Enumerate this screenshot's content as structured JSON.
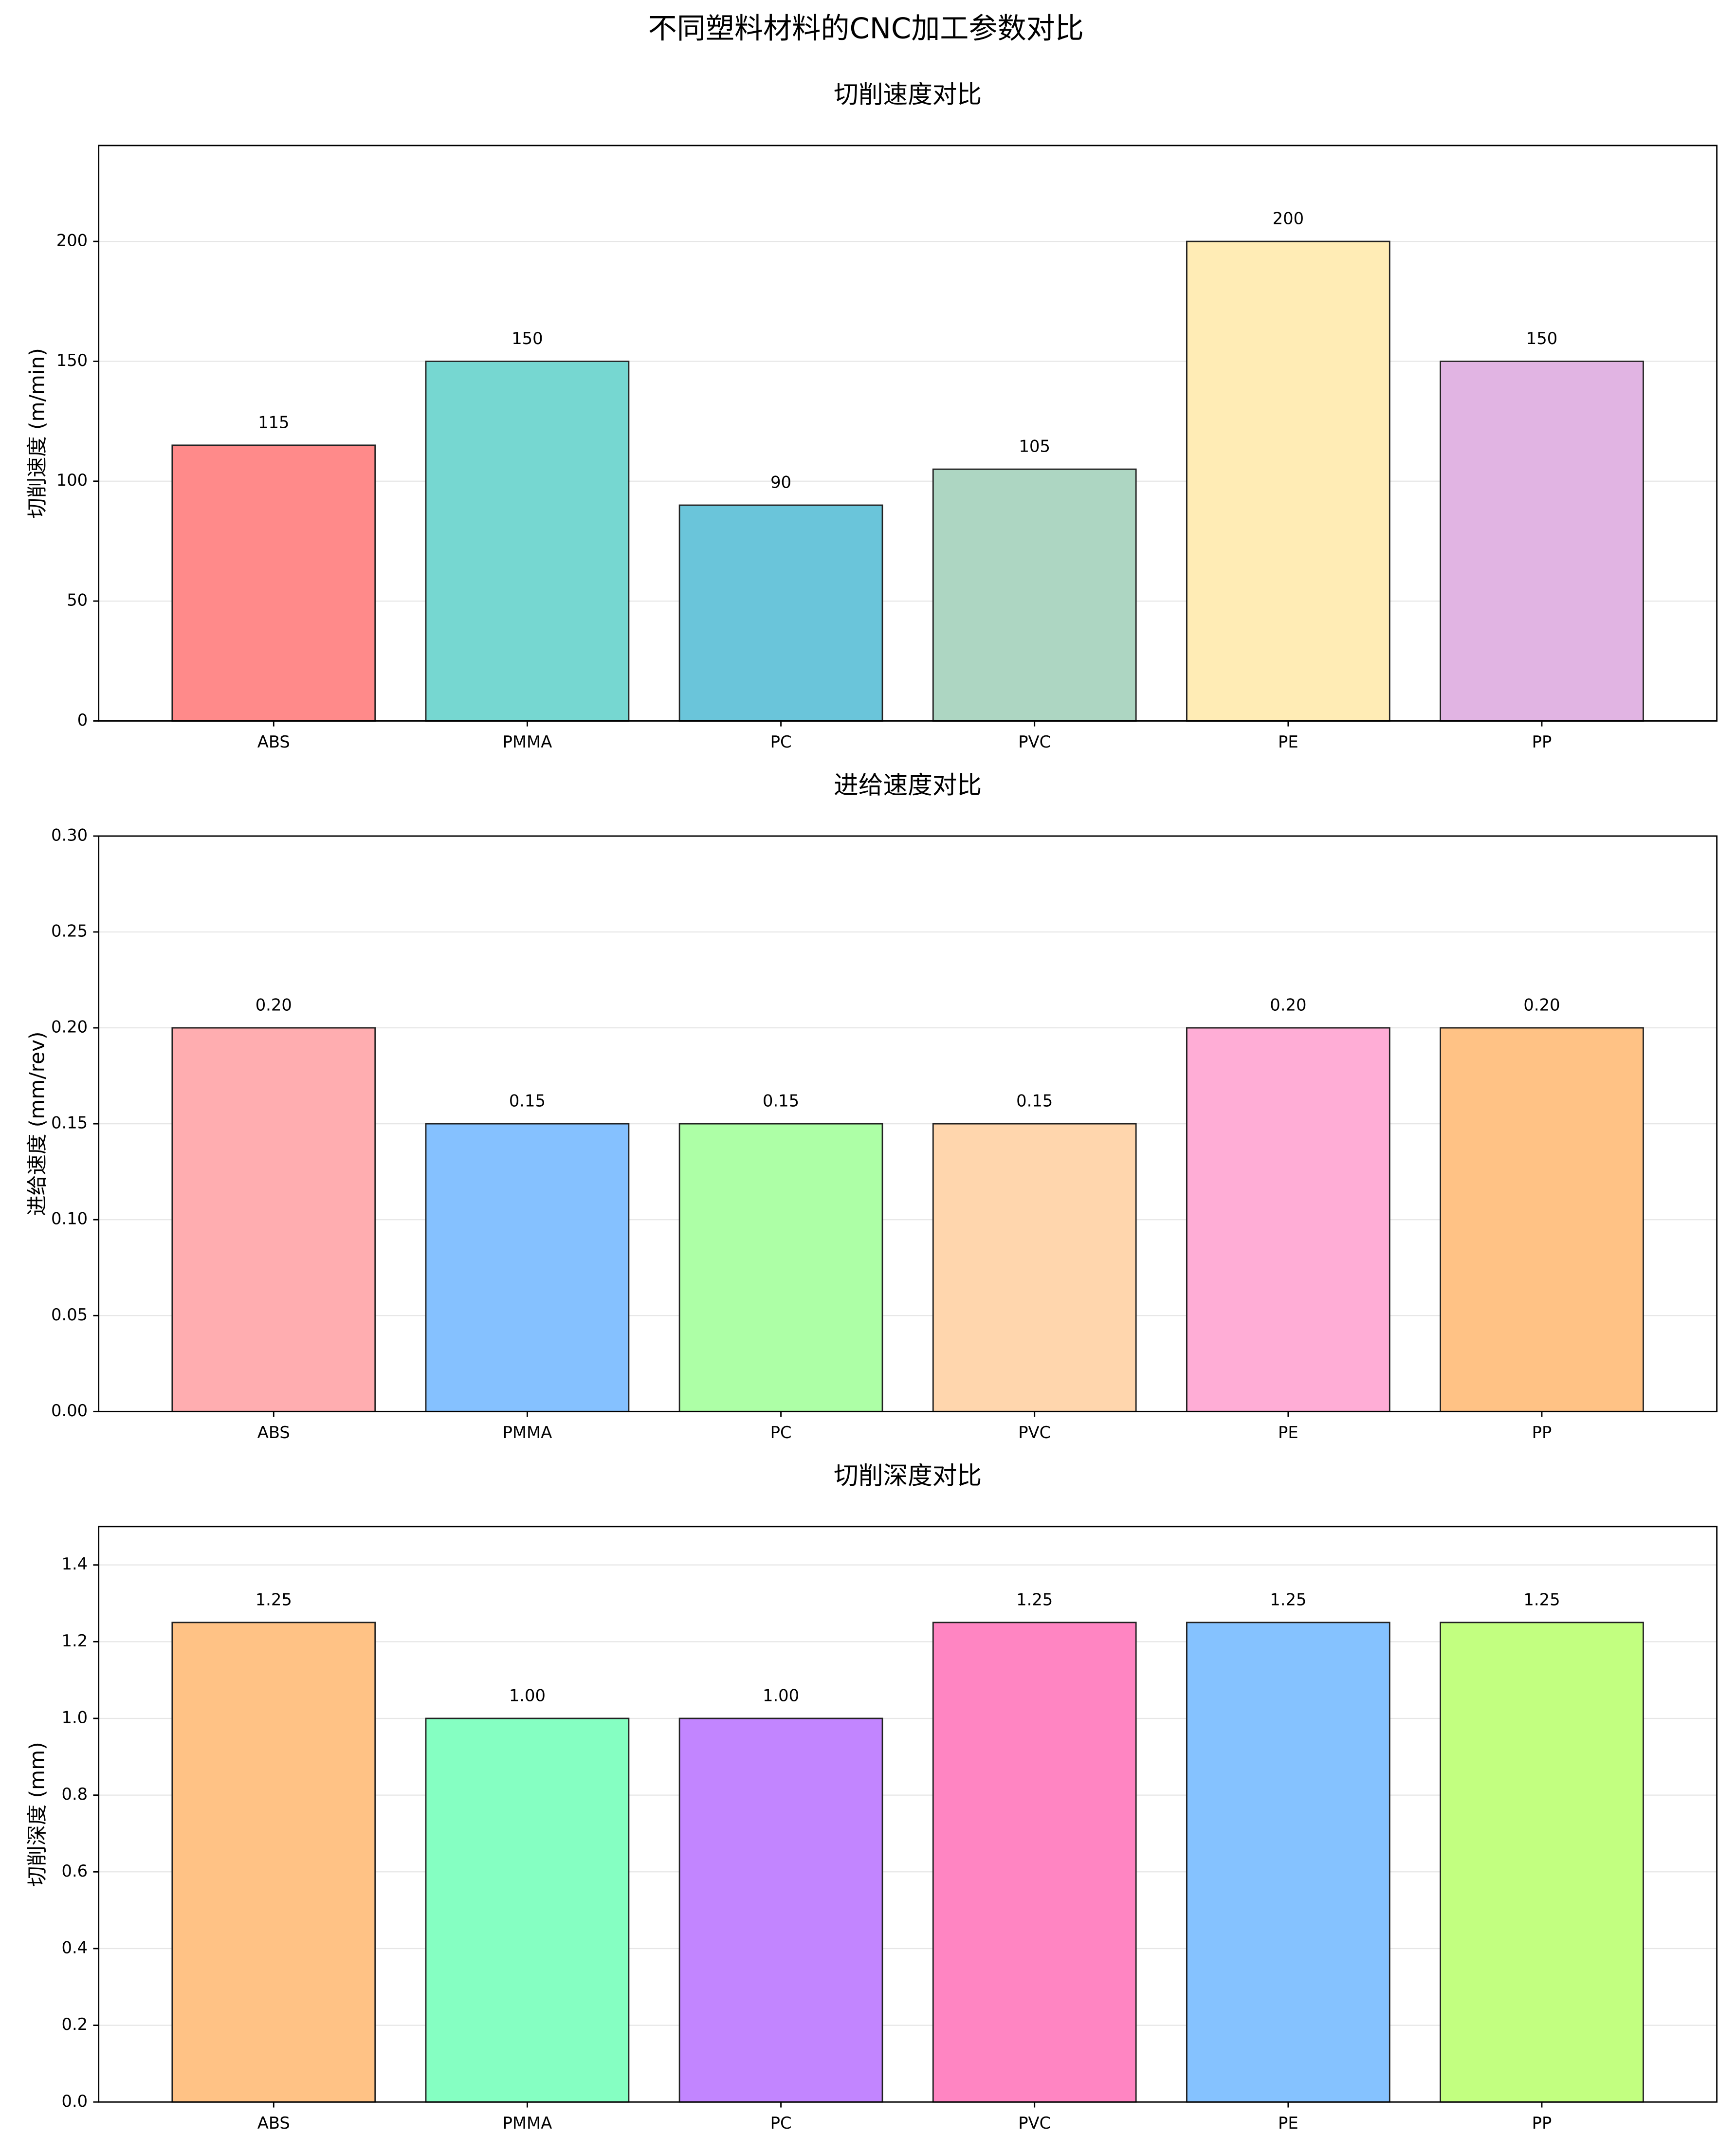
{
  "title": "不同塑料材料的CNC加工参数对比",
  "chart_data": [
    {
      "type": "bar",
      "title": "切削速度对比",
      "y_label": "切削速度 (m/min)",
      "categories": [
        "ABS",
        "PMMA",
        "PC",
        "PVC",
        "PE",
        "PP"
      ],
      "values": [
        115,
        150,
        90,
        105,
        200,
        150
      ],
      "colors": [
        "#ff8a8a",
        "#76d7d1",
        "#6ac5da",
        "#add6c2",
        "#ffecb5",
        "#e1b4e3"
      ],
      "ylim": [
        0,
        240
      ],
      "yticks": [
        0,
        50,
        100,
        150,
        200
      ],
      "grid": true
    },
    {
      "type": "bar",
      "title": "进给速度对比",
      "y_label": "进给速度 (mm/rev)",
      "categories": [
        "ABS",
        "PMMA",
        "PC",
        "PVC",
        "PE",
        "PP"
      ],
      "values": [
        0.2,
        0.15,
        0.15,
        0.15,
        0.2,
        0.2
      ],
      "value_labels": [
        "0.20",
        "0.15",
        "0.15",
        "0.15",
        "0.20",
        "0.20"
      ],
      "colors": [
        "#ffadb0",
        "#85c1ff",
        "#adffa6",
        "#ffd6ad",
        "#ffadd6",
        "#ffc285"
      ],
      "ylim": [
        0,
        0.3
      ],
      "yticks": [
        {
          "value": 0,
          "label": "0.00"
        },
        {
          "value": 0.05,
          "label": "0.05"
        },
        {
          "value": 0.1,
          "label": "0.10"
        },
        {
          "value": 0.15,
          "label": "0.15"
        },
        {
          "value": 0.2,
          "label": "0.20"
        },
        {
          "value": 0.25,
          "label": "0.25"
        },
        {
          "value": 0.3,
          "label": "0.30"
        }
      ],
      "grid": true
    },
    {
      "type": "bar",
      "title": "切削深度对比",
      "y_label": "切削深度 (mm)",
      "categories": [
        "ABS",
        "PMMA",
        "PC",
        "PVC",
        "PE",
        "PP"
      ],
      "values": [
        1.25,
        1,
        1,
        1.25,
        1.25,
        1.25
      ],
      "value_labels": [
        "1.25",
        "1.00",
        "1.00",
        "1.25",
        "1.25",
        "1.25"
      ],
      "colors": [
        "#ffc285",
        "#85ffc2",
        "#c285ff",
        "#ff85c2",
        "#85c2ff",
        "#c2ff80"
      ],
      "ylim": [
        0,
        1.5
      ],
      "yticks": [
        {
          "value": 0,
          "label": "0.0"
        },
        {
          "value": 0.2,
          "label": "0.2"
        },
        {
          "value": 0.4,
          "label": "0.4"
        },
        {
          "value": 0.6,
          "label": "0.6"
        },
        {
          "value": 0.8,
          "label": "0.8"
        },
        {
          "value": 1,
          "label": "1.0"
        },
        {
          "value": 1.2,
          "label": "1.2"
        },
        {
          "value": 1.4,
          "label": "1.4"
        }
      ],
      "grid": true
    }
  ]
}
